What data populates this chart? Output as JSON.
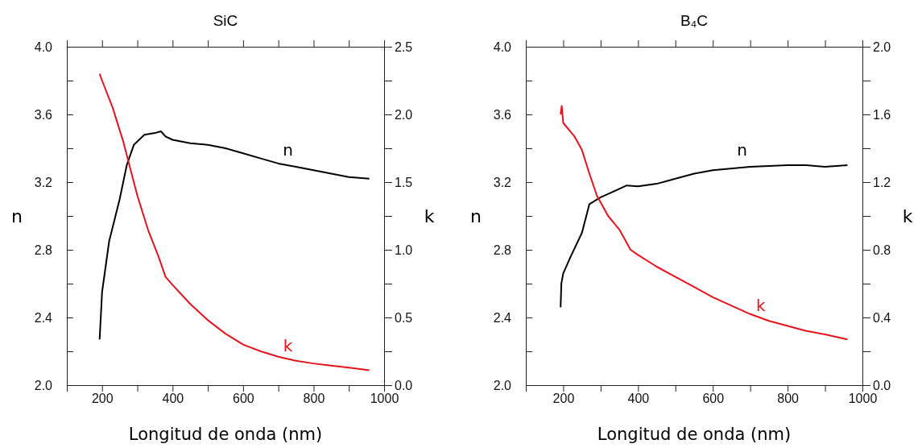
{
  "chart_data": [
    {
      "type": "line",
      "title": "SiC",
      "xlabel": "Longitud de onda (nm)",
      "ylabel": "n",
      "y2label": "k",
      "xlim": [
        100,
        1000
      ],
      "xticks": [
        {
          "value": 100,
          "label": null
        },
        200,
        {
          "value": 300,
          "label": null
        },
        400,
        {
          "value": 500,
          "label": null
        },
        600,
        {
          "value": 700,
          "label": null
        },
        800,
        {
          "value": 900,
          "label": null
        },
        1000
      ],
      "ylim": [
        2.0,
        4.0
      ],
      "yticks": [
        {
          "value": 2.0,
          "label": "2.0"
        },
        {
          "value": 2.2,
          "label": null
        },
        {
          "value": 2.4,
          "label": "2.4"
        },
        {
          "value": 2.6,
          "label": null
        },
        {
          "value": 2.8,
          "label": "2.8"
        },
        {
          "value": 3.0,
          "label": null
        },
        {
          "value": 3.2,
          "label": "3.2"
        },
        {
          "value": 3.4,
          "label": null
        },
        {
          "value": 3.6,
          "label": "3.6"
        },
        {
          "value": 3.8,
          "label": null
        },
        {
          "value": 4.0,
          "label": "4.0"
        }
      ],
      "y2lim": [
        0,
        2.5
      ],
      "y2ticks": [
        {
          "value": 0,
          "label": "0.0"
        },
        {
          "value": 0.25,
          "label": null
        },
        {
          "value": 0.5,
          "label": "0.5"
        },
        {
          "value": 0.75,
          "label": null
        },
        {
          "value": 1.0,
          "label": "1.0"
        },
        {
          "value": 1.25,
          "label": null
        },
        {
          "value": 1.5,
          "label": "1.5"
        },
        {
          "value": 1.75,
          "label": null
        },
        {
          "value": 2.0,
          "label": "2.0"
        },
        {
          "value": 2.25,
          "label": null
        },
        {
          "value": 2.5,
          "label": "2.5"
        }
      ],
      "grid": false,
      "legend": false,
      "line_style": "solid",
      "marker": "none",
      "series": [
        {
          "name": "n",
          "color": "#000000",
          "x": [
            193,
            200,
            220,
            250,
            270,
            290,
            320,
            350,
            367,
            380,
            400,
            450,
            500,
            550,
            600,
            650,
            700,
            750,
            800,
            850,
            900,
            958
          ],
          "values": [
            2.27,
            2.55,
            2.85,
            3.1,
            3.3,
            3.42,
            3.48,
            3.49,
            3.5,
            3.47,
            3.45,
            3.43,
            3.42,
            3.4,
            3.37,
            3.34,
            3.31,
            3.29,
            3.27,
            3.25,
            3.23,
            3.22
          ]
        },
        {
          "name": "k",
          "color": "#e8121b",
          "axis": "y2",
          "x": [
            193,
            200,
            230,
            260,
            280,
            300,
            330,
            360,
            380,
            400,
            450,
            500,
            550,
            600,
            650,
            700,
            750,
            800,
            850,
            900,
            958
          ],
          "values": [
            2.3,
            2.25,
            2.05,
            1.8,
            1.6,
            1.4,
            1.15,
            0.95,
            0.8,
            0.74,
            0.6,
            0.48,
            0.38,
            0.3,
            0.25,
            0.21,
            0.18,
            0.16,
            0.145,
            0.13,
            0.11
          ]
        }
      ]
    },
    {
      "type": "line",
      "title": "B₄C",
      "xlabel": "Longitud de onda (nm)",
      "ylabel": "n",
      "y2label": "k",
      "xlim": [
        100,
        1000
      ],
      "xticks": [
        {
          "value": 100,
          "label": null
        },
        200,
        {
          "value": 300,
          "label": null
        },
        400,
        {
          "value": 500,
          "label": null
        },
        600,
        {
          "value": 700,
          "label": null
        },
        800,
        {
          "value": 900,
          "label": null
        },
        1000
      ],
      "ylim": [
        2.0,
        4.0
      ],
      "yticks": [
        {
          "value": 2.0,
          "label": "2.0"
        },
        {
          "value": 2.2,
          "label": null
        },
        {
          "value": 2.4,
          "label": "2.4"
        },
        {
          "value": 2.6,
          "label": null
        },
        {
          "value": 2.8,
          "label": "2.8"
        },
        {
          "value": 3.0,
          "label": null
        },
        {
          "value": 3.2,
          "label": "3.2"
        },
        {
          "value": 3.4,
          "label": null
        },
        {
          "value": 3.6,
          "label": "3.6"
        },
        {
          "value": 3.8,
          "label": null
        },
        {
          "value": 4.0,
          "label": "4.0"
        }
      ],
      "y2lim": [
        0,
        2.0
      ],
      "y2ticks": [
        {
          "value": 0,
          "label": "0.0"
        },
        {
          "value": 0.2,
          "label": null
        },
        {
          "value": 0.4,
          "label": "0.4"
        },
        {
          "value": 0.6,
          "label": null
        },
        {
          "value": 0.8,
          "label": "0.8"
        },
        {
          "value": 1.0,
          "label": null
        },
        {
          "value": 1.2,
          "label": "1.2"
        },
        {
          "value": 1.4,
          "label": null
        },
        {
          "value": 1.6,
          "label": "1.6"
        },
        {
          "value": 1.8,
          "label": null
        },
        {
          "value": 2.0,
          "label": "2.0"
        }
      ],
      "grid": false,
      "legend": false,
      "line_style": "solid",
      "marker": "none",
      "series": [
        {
          "name": "n",
          "color": "#000000",
          "x": [
            193,
            195,
            200,
            220,
            250,
            270,
            300,
            330,
            370,
            400,
            450,
            500,
            550,
            600,
            700,
            800,
            850,
            900,
            960
          ],
          "values": [
            2.46,
            2.6,
            2.66,
            2.76,
            2.9,
            3.07,
            3.11,
            3.14,
            3.18,
            3.175,
            3.19,
            3.22,
            3.25,
            3.27,
            3.29,
            3.3,
            3.3,
            3.29,
            3.3
          ]
        },
        {
          "name": "k",
          "color": "#e8121b",
          "axis": "y2",
          "x": [
            193,
            196,
            200,
            230,
            250,
            270,
            290,
            320,
            350,
            380,
            400,
            450,
            500,
            550,
            600,
            650,
            700,
            750,
            800,
            850,
            900,
            960
          ],
          "values": [
            1.6,
            1.65,
            1.55,
            1.47,
            1.39,
            1.25,
            1.12,
            1.0,
            0.92,
            0.8,
            0.77,
            0.7,
            0.64,
            0.58,
            0.52,
            0.47,
            0.42,
            0.38,
            0.35,
            0.32,
            0.3,
            0.27
          ]
        }
      ]
    }
  ]
}
